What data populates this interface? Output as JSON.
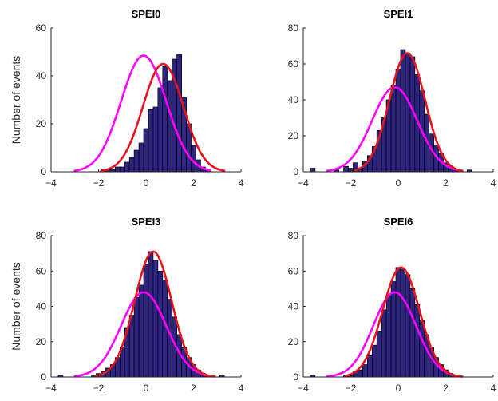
{
  "chart_data": [
    {
      "type": "bar",
      "title": "SPEI0",
      "xlabel": "",
      "ylabel": "Number of events",
      "xlim": [
        -4,
        4
      ],
      "ylim": [
        0,
        60
      ],
      "xticks": [
        -4,
        -2,
        0,
        2,
        4
      ],
      "yticks": [
        0,
        20,
        40,
        60
      ],
      "bin_width": 0.2,
      "bins": [
        {
          "x": -1.8,
          "y": 1
        },
        {
          "x": -1.6,
          "y": 1
        },
        {
          "x": -1.4,
          "y": 1
        },
        {
          "x": -1.2,
          "y": 2
        },
        {
          "x": -1.0,
          "y": 2
        },
        {
          "x": -0.8,
          "y": 4
        },
        {
          "x": -0.6,
          "y": 6
        },
        {
          "x": -0.4,
          "y": 9
        },
        {
          "x": -0.2,
          "y": 12
        },
        {
          "x": 0.0,
          "y": 18
        },
        {
          "x": 0.2,
          "y": 26
        },
        {
          "x": 0.4,
          "y": 27
        },
        {
          "x": 0.6,
          "y": 35
        },
        {
          "x": 0.8,
          "y": 44
        },
        {
          "x": 1.0,
          "y": 38
        },
        {
          "x": 1.2,
          "y": 47
        },
        {
          "x": 1.4,
          "y": 49
        },
        {
          "x": 1.6,
          "y": 31
        },
        {
          "x": 1.8,
          "y": 20
        },
        {
          "x": 2.0,
          "y": 11
        },
        {
          "x": 2.2,
          "y": 5
        },
        {
          "x": 2.4,
          "y": 2
        },
        {
          "x": 2.6,
          "y": 1
        }
      ],
      "curves": [
        {
          "color": "#ff00ff",
          "mean": -0.1,
          "sd": 0.95,
          "peak": 48.5,
          "from": -3.0,
          "to": 2.7
        },
        {
          "color": "#e8141c",
          "mean": 0.72,
          "sd": 0.85,
          "peak": 45,
          "from": -1.9,
          "to": 3.3
        }
      ]
    },
    {
      "type": "bar",
      "title": "SPEI1",
      "xlabel": "",
      "ylabel": "",
      "xlim": [
        -4,
        4
      ],
      "ylim": [
        0,
        80
      ],
      "xticks": [
        -4,
        -2,
        0,
        2,
        4
      ],
      "yticks": [
        0,
        20,
        40,
        60,
        80
      ],
      "bin_width": 0.2,
      "bins": [
        {
          "x": -3.6,
          "y": 2
        },
        {
          "x": -2.6,
          "y": 1
        },
        {
          "x": -2.2,
          "y": 3
        },
        {
          "x": -2.0,
          "y": 2
        },
        {
          "x": -1.8,
          "y": 5
        },
        {
          "x": -1.6,
          "y": 2
        },
        {
          "x": -1.4,
          "y": 6
        },
        {
          "x": -1.2,
          "y": 9
        },
        {
          "x": -1.0,
          "y": 14
        },
        {
          "x": -0.8,
          "y": 23
        },
        {
          "x": -0.6,
          "y": 30
        },
        {
          "x": -0.4,
          "y": 40
        },
        {
          "x": -0.2,
          "y": 48
        },
        {
          "x": 0.0,
          "y": 57
        },
        {
          "x": 0.2,
          "y": 68
        },
        {
          "x": 0.4,
          "y": 66
        },
        {
          "x": 0.6,
          "y": 64
        },
        {
          "x": 0.8,
          "y": 54
        },
        {
          "x": 1.0,
          "y": 45
        },
        {
          "x": 1.2,
          "y": 32
        },
        {
          "x": 1.4,
          "y": 21
        },
        {
          "x": 1.6,
          "y": 15
        },
        {
          "x": 1.8,
          "y": 10
        },
        {
          "x": 2.0,
          "y": 5
        },
        {
          "x": 2.2,
          "y": 3
        },
        {
          "x": 2.4,
          "y": 1
        },
        {
          "x": 2.6,
          "y": 1
        },
        {
          "x": 3.0,
          "y": 1
        }
      ],
      "curves": [
        {
          "color": "#ff00ff",
          "mean": -0.15,
          "sd": 0.95,
          "peak": 47,
          "from": -3.0,
          "to": 2.7
        },
        {
          "color": "#e8141c",
          "mean": 0.38,
          "sd": 0.75,
          "peak": 66,
          "from": -1.8,
          "to": 2.7
        }
      ]
    },
    {
      "type": "bar",
      "title": "SPEI3",
      "xlabel": "",
      "ylabel": "Number of events",
      "xlim": [
        -4,
        4
      ],
      "ylim": [
        0,
        80
      ],
      "xticks": [
        -4,
        -2,
        0,
        2,
        4
      ],
      "yticks": [
        0,
        20,
        40,
        60,
        80
      ],
      "bin_width": 0.2,
      "bins": [
        {
          "x": -3.6,
          "y": 1
        },
        {
          "x": -2.2,
          "y": 1
        },
        {
          "x": -2.0,
          "y": 2
        },
        {
          "x": -1.8,
          "y": 3
        },
        {
          "x": -1.6,
          "y": 5
        },
        {
          "x": -1.4,
          "y": 7
        },
        {
          "x": -1.2,
          "y": 11
        },
        {
          "x": -1.0,
          "y": 17
        },
        {
          "x": -0.8,
          "y": 28
        },
        {
          "x": -0.6,
          "y": 35
        },
        {
          "x": -0.4,
          "y": 45
        },
        {
          "x": -0.2,
          "y": 52
        },
        {
          "x": 0.0,
          "y": 64
        },
        {
          "x": 0.2,
          "y": 71
        },
        {
          "x": 0.4,
          "y": 66
        },
        {
          "x": 0.6,
          "y": 60
        },
        {
          "x": 0.8,
          "y": 55
        },
        {
          "x": 1.0,
          "y": 44
        },
        {
          "x": 1.2,
          "y": 34
        },
        {
          "x": 1.4,
          "y": 24
        },
        {
          "x": 1.6,
          "y": 17
        },
        {
          "x": 1.8,
          "y": 11
        },
        {
          "x": 2.0,
          "y": 7
        },
        {
          "x": 2.2,
          "y": 4
        },
        {
          "x": 2.4,
          "y": 2
        },
        {
          "x": 2.6,
          "y": 1
        },
        {
          "x": 3.2,
          "y": 1
        }
      ],
      "curves": [
        {
          "color": "#ff00ff",
          "mean": -0.1,
          "sd": 0.95,
          "peak": 48,
          "from": -3.0,
          "to": 2.7
        },
        {
          "color": "#e8141c",
          "mean": 0.3,
          "sd": 0.78,
          "peak": 71,
          "from": -2.1,
          "to": 2.9
        }
      ]
    },
    {
      "type": "bar",
      "title": "SPEI6",
      "xlabel": "",
      "ylabel": "",
      "xlim": [
        -4,
        4
      ],
      "ylim": [
        0,
        80
      ],
      "xticks": [
        -4,
        -2,
        0,
        2,
        4
      ],
      "yticks": [
        0,
        20,
        40,
        60,
        80
      ],
      "bin_width": 0.2,
      "bins": [
        {
          "x": -3.6,
          "y": 1
        },
        {
          "x": -2.2,
          "y": 1
        },
        {
          "x": -2.0,
          "y": 1
        },
        {
          "x": -1.8,
          "y": 3
        },
        {
          "x": -1.6,
          "y": 4
        },
        {
          "x": -1.4,
          "y": 7
        },
        {
          "x": -1.2,
          "y": 12
        },
        {
          "x": -1.0,
          "y": 18
        },
        {
          "x": -0.8,
          "y": 26
        },
        {
          "x": -0.6,
          "y": 38
        },
        {
          "x": -0.4,
          "y": 46
        },
        {
          "x": -0.2,
          "y": 54
        },
        {
          "x": 0.0,
          "y": 62
        },
        {
          "x": 0.2,
          "y": 61
        },
        {
          "x": 0.4,
          "y": 58
        },
        {
          "x": 0.6,
          "y": 50
        },
        {
          "x": 0.8,
          "y": 41
        },
        {
          "x": 1.0,
          "y": 32
        },
        {
          "x": 1.2,
          "y": 24
        },
        {
          "x": 1.4,
          "y": 17
        },
        {
          "x": 1.6,
          "y": 11
        },
        {
          "x": 1.8,
          "y": 7
        },
        {
          "x": 2.0,
          "y": 4
        },
        {
          "x": 2.2,
          "y": 2
        },
        {
          "x": 2.4,
          "y": 1
        }
      ],
      "curves": [
        {
          "color": "#ff00ff",
          "mean": -0.15,
          "sd": 0.9,
          "peak": 48,
          "from": -3.0,
          "to": 2.7
        },
        {
          "color": "#e8141c",
          "mean": 0.12,
          "sd": 0.78,
          "peak": 62,
          "from": -2.2,
          "to": 2.7
        }
      ]
    }
  ]
}
